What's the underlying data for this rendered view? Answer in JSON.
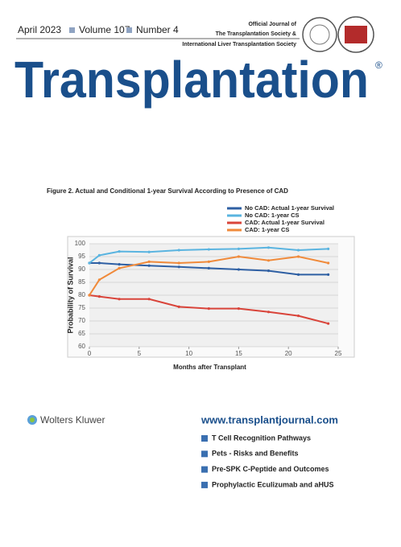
{
  "header": {
    "issue": [
      "April 2023",
      "Volume 107",
      "Number 4"
    ],
    "affiliation": [
      "Official Journal of",
      "The Transplantation Society &",
      "International Liver Transplantation Society"
    ],
    "title": "Transplantation",
    "registered": "®"
  },
  "chart_data": {
    "type": "line",
    "title": "Figure 2. Actual and Conditional 1-year Survival According to Presence of CAD",
    "x_label": "Months after Transplant",
    "y_label": "Probability of Survival",
    "x": [
      0,
      1,
      3,
      6,
      9,
      12,
      15,
      18,
      21,
      24
    ],
    "series": [
      {
        "name": "No CAD: Actual 1-year Survival",
        "color": "#2e5fa3",
        "values": [
          92.5,
          92.5,
          92,
          91.5,
          91,
          90.5,
          90,
          89.5,
          88,
          88
        ]
      },
      {
        "name": "No CAD: 1-year CS",
        "color": "#5ab4e0",
        "values": [
          92.5,
          95.5,
          97,
          96.8,
          97.5,
          97.8,
          98,
          98.5,
          97.5,
          98
        ]
      },
      {
        "name": "CAD: Actual 1-year Survival",
        "color": "#d9443a",
        "values": [
          80,
          79.5,
          78.5,
          78.5,
          75.5,
          74.8,
          74.8,
          73.5,
          72,
          69
        ]
      },
      {
        "name": "CAD: 1-year CS",
        "color": "#f08a3a",
        "values": [
          80,
          86,
          90.5,
          93,
          92.5,
          93,
          95,
          93.5,
          95,
          92.5
        ]
      }
    ],
    "xlim": [
      0,
      25
    ],
    "xticks": [
      0,
      5,
      10,
      15,
      20,
      25
    ],
    "ylim": [
      60,
      100
    ],
    "yticks": [
      60,
      65,
      70,
      75,
      80,
      85,
      90,
      95,
      100
    ],
    "grid": true
  },
  "footer": {
    "publisher": "Wolters Kluwer",
    "url": "www.transplantjournal.com",
    "articles": [
      "T Cell Recognition Pathways",
      "Pets - Risks and Benefits",
      "Pre-SPK C-Peptide and Outcomes",
      "Prophylactic Eculizumab and aHUS"
    ]
  }
}
